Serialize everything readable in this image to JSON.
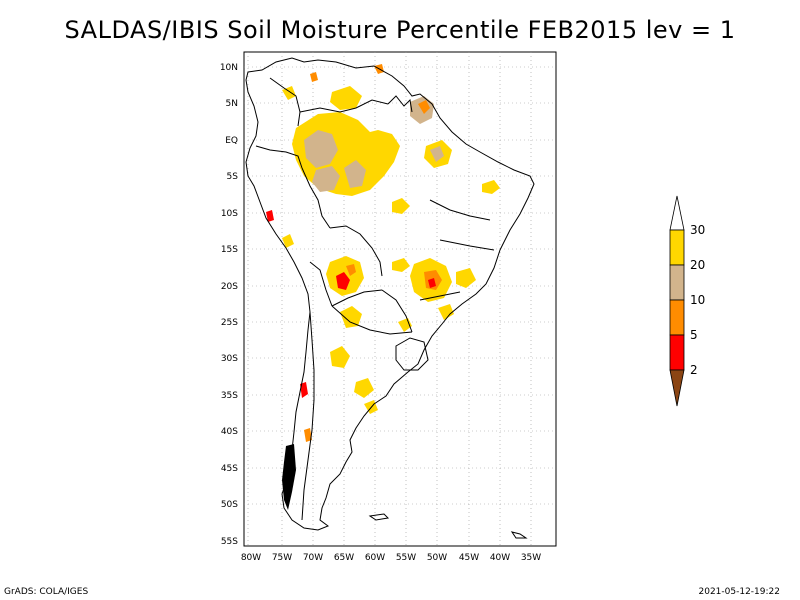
{
  "title": "SALDAS/IBIS Soil Moisture Percentile FEB2015 lev = 1",
  "footer": {
    "left": "GrADS: COLA/IGES",
    "right": "2021-05-12-19:22"
  },
  "map": {
    "region": "South America",
    "lat_ticks": [
      "10N",
      "5N",
      "EQ",
      "5S",
      "10S",
      "15S",
      "20S",
      "25S",
      "30S",
      "35S",
      "40S",
      "45S",
      "50S",
      "55S"
    ],
    "lon_ticks": [
      "80W",
      "75W",
      "70W",
      "65W",
      "60W",
      "55W",
      "50W",
      "45W",
      "40W",
      "35W"
    ],
    "grid": true
  },
  "colorbar": {
    "levels": [
      "30",
      "20",
      "10",
      "5",
      "2"
    ],
    "colors": {
      "above_30": "#ffffff",
      "20_30": "#ffd700",
      "10_20": "#d2b48c",
      "5_10": "#ff8c00",
      "2_5": "#ff0000",
      "below_2": "#8b4513"
    }
  }
}
